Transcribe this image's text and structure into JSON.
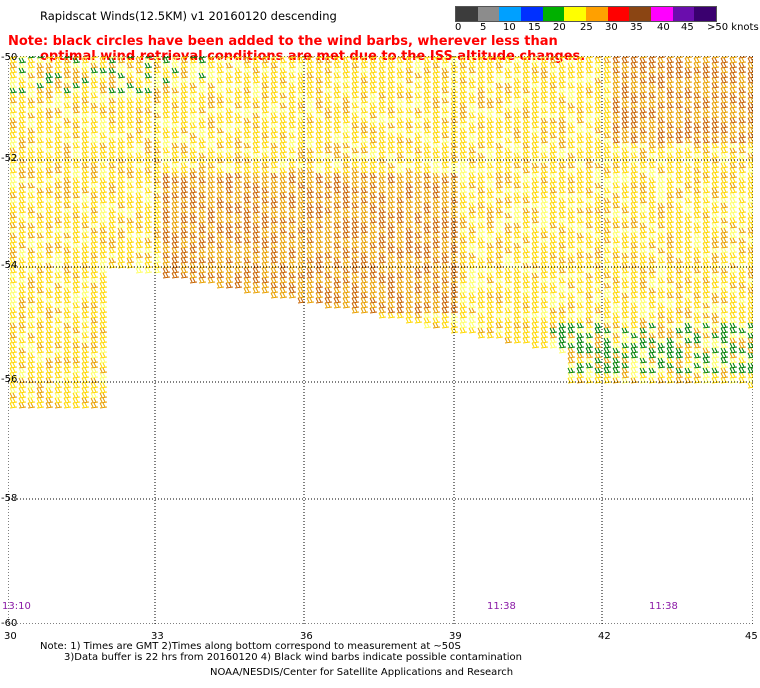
{
  "title": "Rapidscat Winds(12.5KM) v1 20160120 descending",
  "note_line1": "Note: black circles have been added to the wind barbs, wherever less than",
  "note_line2": "optimal wind retrieval conditions are met due to the ISS altitude changes.",
  "colorbar": {
    "labels": [
      "0",
      "5",
      "10",
      "15",
      "20",
      "25",
      "30",
      "35",
      "40",
      "45",
      ">50 knots"
    ],
    "colors": [
      "#3c3c3c",
      "#8c8c8c",
      "#00a0ff",
      "#0030ff",
      "#00b000",
      "#ffff00",
      "#ffa000",
      "#ff0000",
      "#8b4513",
      "#ff00ff",
      "#6a0dad",
      "#3a006f"
    ]
  },
  "lat_labels": [
    "-50",
    "-52",
    "-54",
    "-56",
    "-58",
    "-60"
  ],
  "lon_labels": [
    "30",
    "33",
    "36",
    "39",
    "42",
    "45"
  ],
  "time_labels": [
    "13:10",
    "11:38",
    "11:38"
  ],
  "footnote_line1": "Note: 1) Times are GMT 2)Times along bottom correspond to measurement at ~50S",
  "footnote_line2": "3)Data buffer is 22 hrs from 20160120 4) Black wind barbs indicate possible contamination",
  "credit": "NOAA/NESDIS/Center for Satellite Applications and Research",
  "colors": {
    "light_yellow": "#ffff66",
    "yellow": "#ffd700",
    "orange": "#e8a000",
    "dark_orange": "#c86400",
    "green": "#008000"
  }
}
